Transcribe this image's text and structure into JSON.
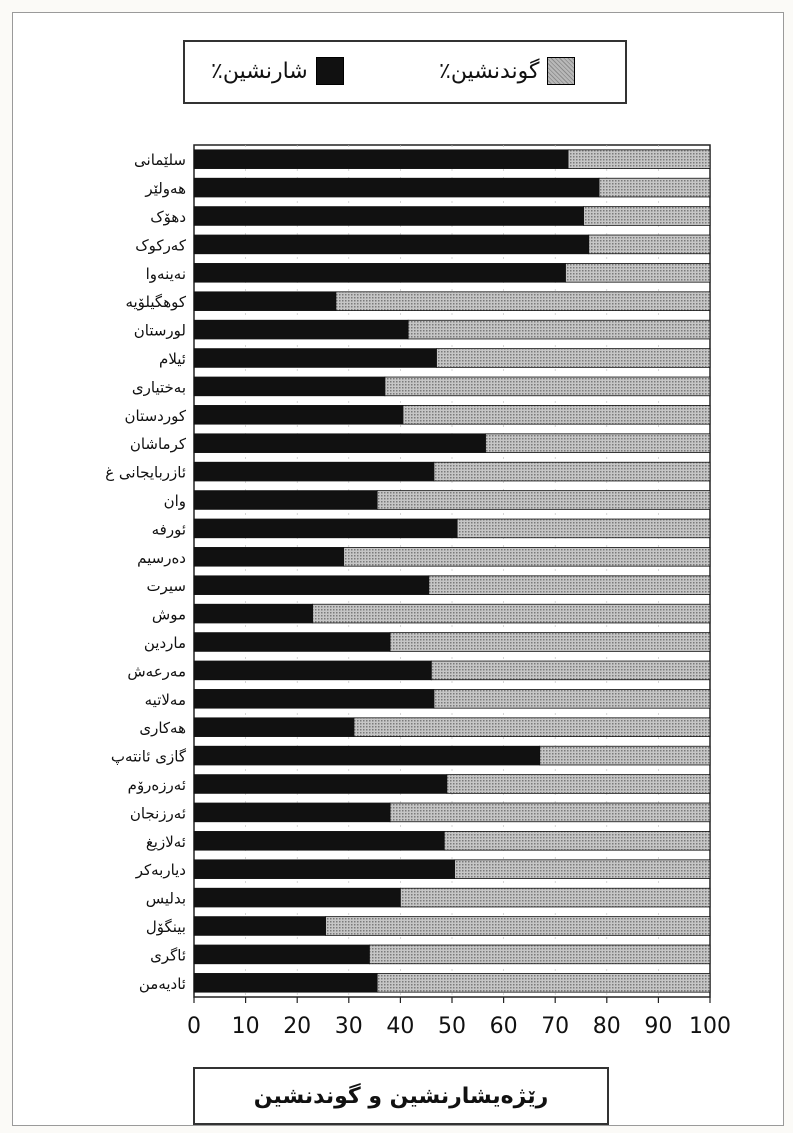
{
  "chart_data": {
    "type": "bar",
    "stacked": true,
    "orientation": "horizontal",
    "categories": [
      "سلێمانی",
      "هەولێر",
      "دهۆک",
      "کەرکوک",
      "نەینەوا",
      "کوهگیلۆیە",
      "لورستان",
      "ئیلام",
      "بەختیاری",
      "کوردستان",
      "کرماشان",
      "ئازربایجانی غ",
      "وان",
      "ئورفە",
      "دەرسیم",
      "سیرت",
      "موش",
      "ماردین",
      "مەرعەش",
      "مەلاتیە",
      "هەکاری",
      "گازی ئانتەپ",
      "ئەرزەرۆم",
      "ئەرزنجان",
      "ئەلازیغ",
      "دیاربەکر",
      "بدلیس",
      "بینگۆل",
      "ئاگری",
      "ئادیەمن"
    ],
    "series": [
      {
        "name": "شارنشین٪",
        "color": "#111111",
        "values": [
          72.5,
          78.5,
          75.5,
          76.5,
          72,
          27.5,
          41.5,
          47,
          37,
          40.5,
          56.5,
          46.5,
          35.5,
          51,
          29,
          45.5,
          23,
          38,
          46,
          46.5,
          31,
          67,
          49,
          38,
          48.5,
          50.5,
          40,
          25.5,
          34,
          35.5
        ]
      },
      {
        "name": "گوندنشین٪",
        "color": "#a8a8a8",
        "values": [
          27.5,
          21.5,
          24.5,
          23.5,
          28,
          72.5,
          58.5,
          53,
          63,
          59.5,
          43.5,
          53.5,
          64.5,
          49,
          71,
          54.5,
          77,
          62,
          54,
          53.5,
          69,
          33,
          51,
          62,
          51.5,
          49.5,
          60,
          74.5,
          66,
          64.5
        ]
      }
    ],
    "xlim": [
      0,
      100
    ],
    "xticks": [
      "0",
      "10",
      "20",
      "30",
      "40",
      "50",
      "60",
      "70",
      "80",
      "90",
      "100"
    ],
    "grid": false,
    "legend_position": "top"
  },
  "legend": {
    "urban_label": "شارنشین٪",
    "rural_label": "گوندنشین٪"
  },
  "caption": "رێژەیشارنشین و گوندنشین"
}
